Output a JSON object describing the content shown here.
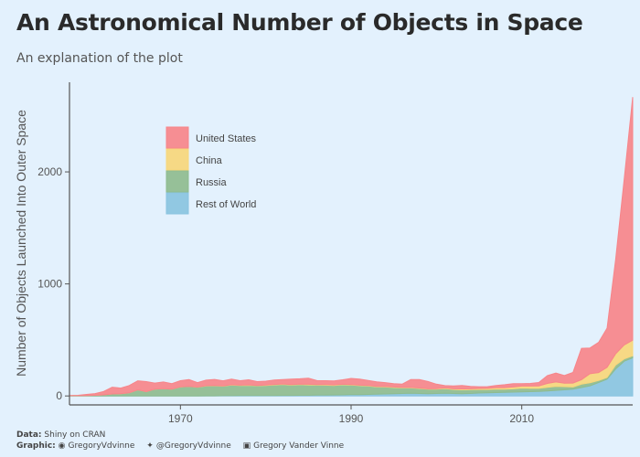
{
  "title": "An Astronomical Number of Objects in Space",
  "subtitle": "An explanation of the plot",
  "caption": {
    "data_label": "Data:",
    "data_value": "Shiny on CRAN",
    "graphic_label": "Graphic:",
    "github": "GregoryVdvinne",
    "twitter": "@GregoryVdvinne",
    "linkedin": "Gregory Vander Vinne"
  },
  "chart_data": {
    "type": "area",
    "stacked": true,
    "ylabel": "Number of Objects Launched Into Outer Space",
    "xlabel": "",
    "xlim": [
      1957,
      2023
    ],
    "ylim": [
      -80,
      2800
    ],
    "x_ticks": [
      1970,
      1990,
      2010
    ],
    "y_ticks": [
      0,
      1000,
      2000
    ],
    "grid": false,
    "legend_position": "top-left",
    "x": [
      1957,
      1958,
      1959,
      1960,
      1961,
      1962,
      1963,
      1964,
      1965,
      1966,
      1967,
      1968,
      1969,
      1970,
      1971,
      1972,
      1973,
      1974,
      1975,
      1976,
      1977,
      1978,
      1979,
      1980,
      1981,
      1982,
      1983,
      1984,
      1985,
      1986,
      1987,
      1988,
      1989,
      1990,
      1991,
      1992,
      1993,
      1994,
      1995,
      1996,
      1997,
      1998,
      1999,
      2000,
      2001,
      2002,
      2003,
      2004,
      2005,
      2006,
      2007,
      2008,
      2009,
      2010,
      2011,
      2012,
      2013,
      2014,
      2015,
      2016,
      2017,
      2018,
      2019,
      2020,
      2021,
      2022,
      2023
    ],
    "series": [
      {
        "name": "Rest of World",
        "color": "#8ac4e0",
        "values": [
          0,
          0,
          0,
          0,
          0,
          0,
          0,
          0,
          0,
          0,
          0,
          0,
          0,
          0,
          0,
          0,
          1,
          1,
          2,
          2,
          3,
          3,
          3,
          4,
          4,
          5,
          5,
          6,
          6,
          7,
          8,
          9,
          10,
          12,
          12,
          14,
          16,
          18,
          20,
          22,
          24,
          22,
          20,
          22,
          24,
          22,
          20,
          22,
          26,
          28,
          30,
          32,
          34,
          36,
          38,
          40,
          45,
          50,
          55,
          60,
          75,
          90,
          120,
          150,
          240,
          310,
          340
        ]
      },
      {
        "name": "Russia",
        "color": "#8fbc8f",
        "values": [
          2,
          2,
          4,
          6,
          10,
          18,
          20,
          28,
          55,
          38,
          60,
          65,
          60,
          80,
          85,
          78,
          88,
          90,
          85,
          95,
          90,
          92,
          88,
          90,
          95,
          98,
          92,
          95,
          93,
          90,
          88,
          85,
          90,
          85,
          80,
          75,
          65,
          62,
          55,
          50,
          48,
          45,
          40,
          38,
          42,
          36,
          35,
          34,
          32,
          30,
          32,
          28,
          30,
          34,
          30,
          28,
          32,
          35,
          28,
          20,
          30,
          28,
          18,
          15,
          35,
          20,
          18
        ]
      },
      {
        "name": "China",
        "color": "#f7d77b",
        "values": [
          0,
          0,
          0,
          0,
          0,
          0,
          0,
          0,
          0,
          0,
          0,
          0,
          0,
          1,
          1,
          1,
          2,
          2,
          3,
          3,
          3,
          4,
          2,
          3,
          4,
          4,
          4,
          4,
          5,
          5,
          5,
          5,
          4,
          5,
          4,
          5,
          5,
          4,
          5,
          4,
          4,
          4,
          4,
          5,
          6,
          6,
          8,
          8,
          9,
          10,
          12,
          14,
          16,
          18,
          20,
          22,
          35,
          40,
          30,
          35,
          40,
          80,
          70,
          90,
          100,
          125,
          140
        ]
      },
      {
        "name": "United States",
        "color": "#f7858a",
        "values": [
          1,
          4,
          10,
          15,
          30,
          60,
          50,
          65,
          80,
          90,
          55,
          60,
          50,
          55,
          60,
          40,
          50,
          55,
          45,
          50,
          40,
          45,
          35,
          35,
          40,
          40,
          50,
          48,
          55,
          35,
          35,
          35,
          40,
          55,
          55,
          45,
          40,
          35,
          30,
          30,
          70,
          75,
          65,
          40,
          20,
          25,
          30,
          22,
          15,
          15,
          20,
          26,
          30,
          22,
          24,
          30,
          70,
          80,
          70,
          95,
          280,
          230,
          270,
          350,
          840,
          1480,
          2170
        ]
      }
    ]
  }
}
